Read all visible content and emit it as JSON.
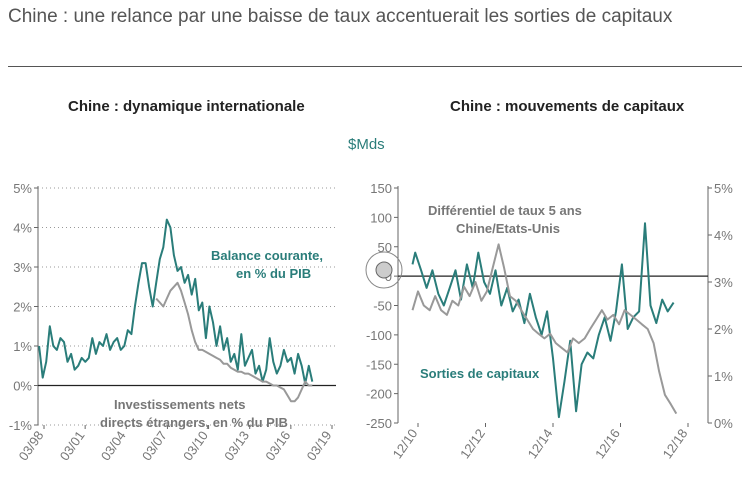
{
  "header": {
    "title": "Chine : une relance par une baisse de taux accentuerait les sorties de capitaux"
  },
  "colors": {
    "teal": "#2a7d7a",
    "gray": "#999999",
    "axis": "#555555"
  },
  "chart_data": [
    {
      "type": "line",
      "title": "Chine : dynamique internationale",
      "x_tick_labels": [
        "03/98",
        "03/01",
        "03/04",
        "03/07",
        "03/10",
        "03/13",
        "03/16",
        "03/19"
      ],
      "x_range": [
        1998.17,
        2019.17
      ],
      "ylim": [
        -1,
        5
      ],
      "y_tick_labels": [
        "5%",
        "4%",
        "3%",
        "2%",
        "1%",
        "0%",
        "-1%"
      ],
      "y_ticks": [
        5,
        4,
        3,
        2,
        1,
        0,
        -1
      ],
      "series": [
        {
          "name": "Balance courante, en % du PIB",
          "color": "teal",
          "x": [
            1998.25,
            1998.5,
            1998.75,
            1999.0,
            1999.25,
            1999.5,
            1999.75,
            2000.0,
            2000.25,
            2000.5,
            2000.75,
            2001.0,
            2001.25,
            2001.5,
            2001.75,
            2002.0,
            2002.25,
            2002.5,
            2002.75,
            2003.0,
            2003.25,
            2003.5,
            2003.75,
            2004.0,
            2004.25,
            2004.5,
            2004.75,
            2005.0,
            2005.25,
            2005.5,
            2005.75,
            2006.0,
            2006.25,
            2006.5,
            2006.75,
            2007.0,
            2007.25,
            2007.5,
            2007.75,
            2008.0,
            2008.25,
            2008.5,
            2008.75,
            2009.0,
            2009.25,
            2009.5,
            2009.75,
            2010.0,
            2010.25,
            2010.5,
            2010.75,
            2011.0,
            2011.25,
            2011.5,
            2011.75,
            2012.0,
            2012.25,
            2012.5,
            2012.75,
            2013.0,
            2013.25,
            2013.5,
            2013.75,
            2014.0,
            2014.25,
            2014.5,
            2014.75,
            2015.0,
            2015.25,
            2015.5,
            2015.75,
            2016.0,
            2016.25,
            2016.5,
            2016.75,
            2017.0,
            2017.25,
            2017.5
          ],
          "y": [
            1.0,
            0.2,
            0.6,
            1.5,
            1.0,
            0.9,
            1.2,
            1.1,
            0.6,
            0.8,
            0.4,
            0.5,
            0.7,
            0.6,
            0.7,
            1.2,
            0.8,
            1.1,
            1.0,
            1.3,
            0.9,
            1.1,
            1.2,
            0.9,
            1.0,
            1.4,
            1.3,
            2.0,
            2.6,
            3.1,
            3.1,
            2.5,
            2.0,
            2.6,
            3.2,
            3.5,
            4.2,
            4.0,
            3.3,
            2.9,
            3.0,
            2.6,
            2.8,
            2.3,
            2.7,
            1.9,
            2.1,
            1.2,
            2.0,
            1.6,
            1.0,
            1.5,
            0.9,
            1.2,
            0.6,
            0.8,
            0.4,
            1.3,
            0.5,
            0.7,
            0.9,
            0.3,
            0.5,
            0.1,
            0.4,
            1.2,
            0.6,
            0.3,
            0.5,
            0.9,
            0.6,
            0.7,
            0.3,
            0.8,
            0.5,
            0.05,
            0.5,
            0.1
          ]
        },
        {
          "name": "Investissements nets directs étrangers, en % du PIB",
          "color": "gray",
          "x": [
            2006.5,
            2006.75,
            2007.0,
            2007.25,
            2007.5,
            2007.75,
            2008.0,
            2008.25,
            2008.5,
            2008.75,
            2009.0,
            2009.25,
            2009.5,
            2009.75,
            2010.0,
            2010.25,
            2010.5,
            2010.75,
            2011.0,
            2011.25,
            2011.5,
            2011.75,
            2012.0,
            2012.25,
            2012.5,
            2012.75,
            2013.0,
            2013.25,
            2013.5,
            2013.75,
            2014.0,
            2014.25,
            2014.5,
            2014.75,
            2015.0,
            2015.25,
            2015.5,
            2015.75,
            2016.0,
            2016.25,
            2016.5,
            2016.75,
            2017.0,
            2017.25,
            2017.5
          ],
          "y": [
            2.2,
            2.1,
            2.0,
            2.2,
            2.4,
            2.5,
            2.6,
            2.4,
            2.1,
            1.8,
            1.4,
            1.1,
            0.9,
            0.9,
            0.85,
            0.8,
            0.75,
            0.7,
            0.65,
            0.55,
            0.55,
            0.45,
            0.4,
            0.35,
            0.35,
            0.3,
            0.3,
            0.25,
            0.2,
            0.15,
            0.1,
            0.1,
            0.05,
            0.0,
            0.0,
            -0.05,
            -0.1,
            -0.25,
            -0.4,
            -0.4,
            -0.3,
            -0.1,
            0.1,
            0.0,
            0.0
          ]
        }
      ]
    },
    {
      "type": "line",
      "title": "Chine : mouvements de capitaux",
      "y_unit": "$Mds",
      "x_tick_labels": [
        "12/10",
        "12/12",
        "12/14",
        "12/16",
        "12/18"
      ],
      "x_range": [
        2010.5,
        2019.5
      ],
      "ylim_left": [
        -250,
        150
      ],
      "y_left_ticks": [
        150,
        100,
        50,
        0,
        -50,
        -100,
        -150,
        -200,
        -250
      ],
      "y_left_labels": [
        "150",
        "100",
        "50",
        "0",
        "-50",
        "-100",
        "-150",
        "-200",
        "-250"
      ],
      "ylim_right": [
        0,
        5
      ],
      "y_right_ticks": [
        5,
        4,
        3,
        2,
        1,
        0
      ],
      "y_right_labels": [
        "5%",
        "4%",
        "3%",
        "2%",
        "1%",
        "0%"
      ],
      "series": [
        {
          "name": "Sorties de capitaux",
          "axis": "left",
          "color": "teal",
          "x": [
            2010.92,
            2011.0,
            2011.17,
            2011.33,
            2011.5,
            2011.67,
            2011.83,
            2012.0,
            2012.17,
            2012.33,
            2012.5,
            2012.67,
            2012.83,
            2013.0,
            2013.17,
            2013.33,
            2013.5,
            2013.67,
            2013.83,
            2014.0,
            2014.17,
            2014.33,
            2014.5,
            2014.67,
            2014.83,
            2015.0,
            2015.17,
            2015.33,
            2015.5,
            2015.67,
            2015.83,
            2016.0,
            2016.17,
            2016.33,
            2016.5,
            2016.67,
            2016.83,
            2017.0,
            2017.17,
            2017.33,
            2017.5,
            2017.67,
            2017.83,
            2018.0,
            2018.17,
            2018.33,
            2018.5
          ],
          "y": [
            20,
            40,
            10,
            -20,
            10,
            -30,
            -50,
            -20,
            10,
            -40,
            20,
            -20,
            40,
            -10,
            -30,
            10,
            -50,
            -20,
            -60,
            -40,
            -80,
            -30,
            -70,
            -100,
            -60,
            -140,
            -240,
            -180,
            -110,
            -230,
            -150,
            -130,
            -140,
            -100,
            -70,
            -110,
            -60,
            20,
            -90,
            -70,
            -60,
            90,
            -50,
            -80,
            -40,
            -60,
            -45
          ]
        },
        {
          "name": "Différentiel de taux 5 ans Chine/Etats-Unis",
          "axis": "right",
          "color": "gray",
          "x": [
            2010.92,
            2011.08,
            2011.25,
            2011.42,
            2011.58,
            2011.75,
            2011.92,
            2012.08,
            2012.25,
            2012.42,
            2012.58,
            2012.75,
            2012.92,
            2013.08,
            2013.25,
            2013.42,
            2013.58,
            2013.75,
            2013.92,
            2014.08,
            2014.25,
            2014.42,
            2014.58,
            2014.75,
            2014.92,
            2015.08,
            2015.25,
            2015.42,
            2015.58,
            2015.75,
            2015.92,
            2016.08,
            2016.25,
            2016.42,
            2016.58,
            2016.75,
            2016.92,
            2017.08,
            2017.25,
            2017.42,
            2017.58,
            2017.75,
            2017.92,
            2018.08,
            2018.25,
            2018.42,
            2018.58
          ],
          "y": [
            2.4,
            2.8,
            2.5,
            2.4,
            2.7,
            2.4,
            2.3,
            2.6,
            2.5,
            2.9,
            2.7,
            3.0,
            2.6,
            2.8,
            3.3,
            3.8,
            3.3,
            2.7,
            2.6,
            2.4,
            2.2,
            2.0,
            1.9,
            1.8,
            1.9,
            1.7,
            1.6,
            1.5,
            1.8,
            1.7,
            1.8,
            2.0,
            2.2,
            2.4,
            2.2,
            2.3,
            2.1,
            2.4,
            2.3,
            2.2,
            2.1,
            2.0,
            1.7,
            1.1,
            0.6,
            0.4,
            0.2
          ]
        }
      ]
    }
  ],
  "annotations": {
    "left_teal": [
      "Balance courante,",
      "en % du PIB"
    ],
    "left_gray": [
      "Investissements nets",
      "directs étrangers, en % du PIB"
    ],
    "right_gray": [
      "Différentiel de taux 5 ans",
      "Chine/Etats-Unis"
    ],
    "right_teal": [
      "Sorties de capitaux"
    ]
  }
}
